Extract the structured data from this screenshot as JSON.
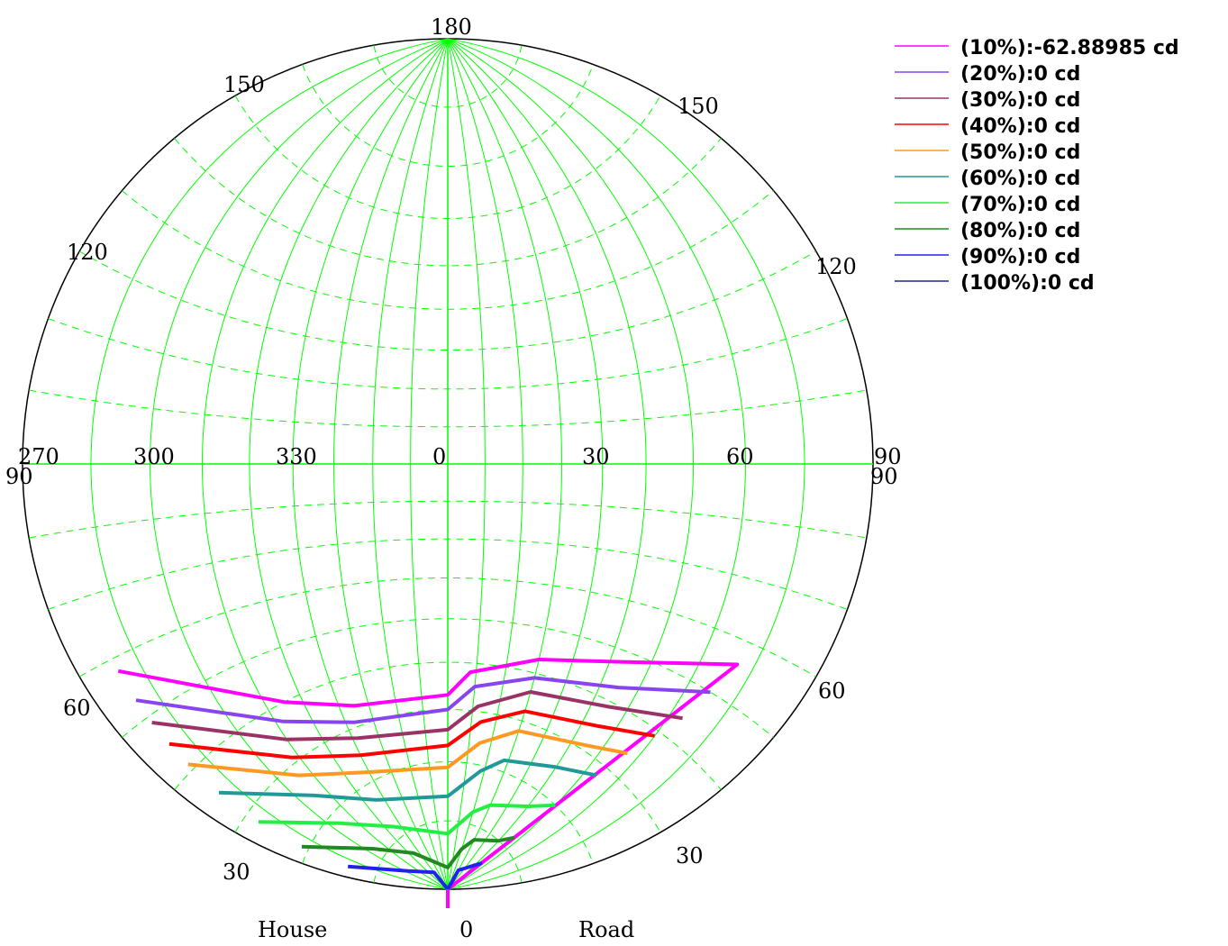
{
  "chart_data": {
    "type": "line",
    "title": "",
    "projection": "stereographic polar (isocandela diagram)",
    "grid": true,
    "grid_color": "#00ff00",
    "legend_position": "top-right",
    "bottom_labels": {
      "left": "House",
      "center": "0",
      "right": "Road"
    },
    "tick_labels": {
      "top": "180",
      "upper_left": "150",
      "upper_right": "150",
      "mid_left": "120",
      "mid_right": "120",
      "horizontal_row": [
        "270",
        "300",
        "330",
        "0",
        "30",
        "60",
        "90"
      ],
      "left_edge": "90",
      "right_edge": "90",
      "lower_left": "60",
      "lower_right": "60",
      "bottom_left": "30",
      "bottom_right": "30"
    },
    "series": [
      {
        "name": "(10%):-62.88985 cd",
        "color": "#ff00ff",
        "points": [
          [
            -84,
            58
          ],
          [
            -55,
            40
          ],
          [
            -35,
            34
          ],
          [
            0,
            33
          ],
          [
            8,
            38
          ],
          [
            30,
            43
          ],
          [
            54,
            48
          ],
          [
            77,
            56
          ],
          [
            77,
            0
          ]
        ]
      },
      {
        "name": "(20%):0 cd",
        "color": "#8844ee",
        "points": [
          [
            -84,
            53
          ],
          [
            -58,
            37
          ],
          [
            -37,
            31
          ],
          [
            0,
            30
          ],
          [
            10,
            35
          ],
          [
            30,
            39
          ],
          [
            55,
            43
          ],
          [
            75,
            50
          ]
        ]
      },
      {
        "name": "(30%):0 cd",
        "color": "#993366",
        "points": [
          [
            -84,
            49
          ],
          [
            -60,
            34
          ],
          [
            -38,
            28
          ],
          [
            0,
            26
          ],
          [
            12,
            31
          ],
          [
            30,
            36
          ],
          [
            55,
            39
          ],
          [
            73,
            44
          ]
        ]
      },
      {
        "name": "(40%):0 cd",
        "color": "#ff0000",
        "points": [
          [
            -84,
            45
          ],
          [
            -62,
            31
          ],
          [
            -40,
            25
          ],
          [
            0,
            23
          ],
          [
            14,
            28
          ],
          [
            30,
            32
          ],
          [
            55,
            35
          ],
          [
            70,
            39
          ]
        ]
      },
      {
        "name": "(50%):0 cd",
        "color": "#ff9922",
        "points": [
          [
            -84,
            41
          ],
          [
            -64,
            28
          ],
          [
            -42,
            22
          ],
          [
            0,
            19
          ],
          [
            15,
            24
          ],
          [
            30,
            28
          ],
          [
            55,
            31
          ],
          [
            67,
            34
          ]
        ]
      },
      {
        "name": "(60%):0 cd",
        "color": "#229999",
        "points": [
          [
            -84,
            35
          ],
          [
            -65,
            24
          ],
          [
            -44,
            17
          ],
          [
            0,
            14
          ],
          [
            18,
            19
          ],
          [
            28,
            22
          ],
          [
            50,
            25
          ],
          [
            64,
            28
          ]
        ]
      },
      {
        "name": "(70%):0 cd",
        "color": "#22ee44",
        "points": [
          [
            -84,
            28
          ],
          [
            -66,
            18
          ],
          [
            -45,
            12
          ],
          [
            0,
            8
          ],
          [
            20,
            12
          ],
          [
            30,
            14
          ],
          [
            50,
            17
          ],
          [
            60,
            20
          ]
        ]
      },
      {
        "name": "(80%):0 cd",
        "color": "#228822",
        "points": [
          [
            -84,
            21
          ],
          [
            -67,
            12
          ],
          [
            -46,
            7
          ],
          [
            0,
            3
          ],
          [
            20,
            6
          ],
          [
            30,
            8
          ],
          [
            50,
            10
          ],
          [
            57,
            12
          ]
        ]
      },
      {
        "name": "(90%):0 cd",
        "color": "#2222ee",
        "points": [
          [
            -84,
            14
          ],
          [
            -68,
            6
          ],
          [
            -40,
            3
          ],
          [
            0,
            0
          ],
          [
            30,
            3
          ],
          [
            43,
            4
          ],
          [
            50,
            5
          ],
          [
            55,
            6
          ]
        ]
      },
      {
        "name": "(100%):0 cd",
        "color": "#222288",
        "points": []
      }
    ]
  }
}
